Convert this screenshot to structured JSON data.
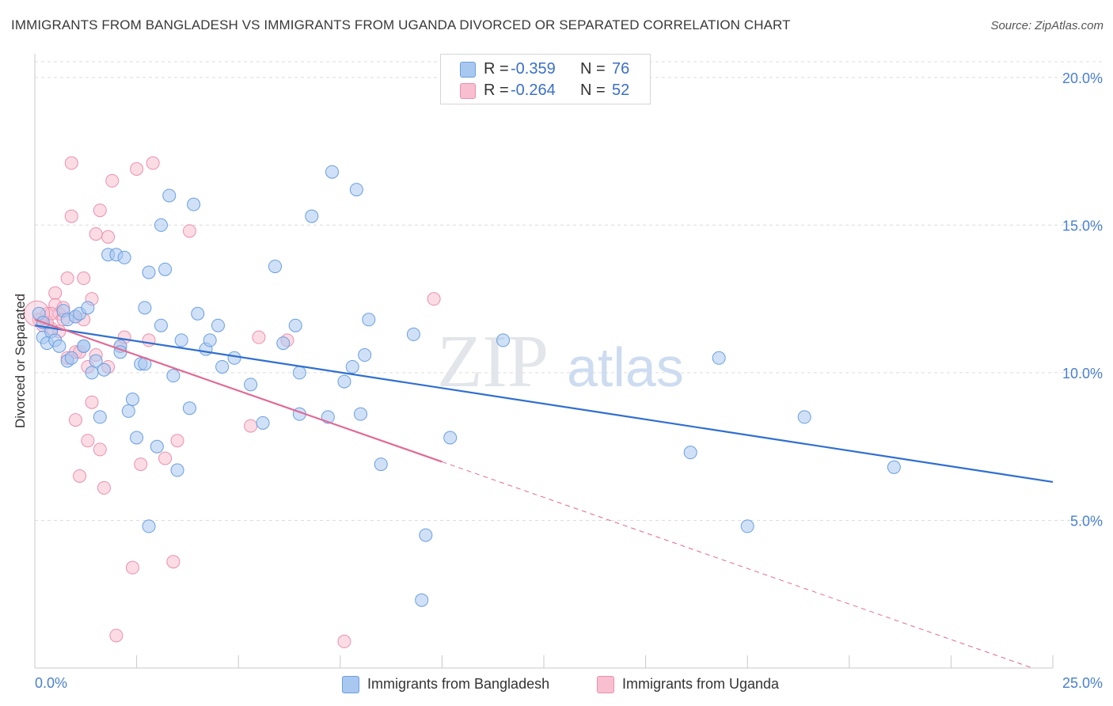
{
  "title": "IMMIGRANTS FROM BANGLADESH VS IMMIGRANTS FROM UGANDA DIVORCED OR SEPARATED CORRELATION CHART",
  "source": "Source: ZipAtlas.com",
  "watermark": {
    "zip": "ZIP",
    "atlas": "atlas"
  },
  "legend": {
    "rows": [
      {
        "r_label": "R =",
        "r_value": "-0.359",
        "n_label": "N =",
        "n_value": "76"
      },
      {
        "r_label": "R =",
        "r_value": "-0.264",
        "n_label": "N =",
        "n_value": "52"
      }
    ]
  },
  "bottom_legend": {
    "bangladesh": "Immigrants from Bangladesh",
    "uganda": "Immigrants from Uganda"
  },
  "colors": {
    "bangladesh_fill": "#a9c8f0",
    "bangladesh_stroke": "#6a9ee0",
    "bangladesh_line": "#2f6fd0",
    "uganda_fill": "#f7bfd0",
    "uganda_stroke": "#ec8fae",
    "uganda_line": "#e06a94",
    "tick_text": "#4a7fd0",
    "grid": "#dcdcdc"
  },
  "chart_data": {
    "type": "scatter",
    "title": "IMMIGRANTS FROM BANGLADESH VS IMMIGRANTS FROM UGANDA DIVORCED OR SEPARATED CORRELATION CHART",
    "xlabel": "",
    "ylabel": "Divorced or Separated",
    "xlim": [
      0,
      25
    ],
    "ylim": [
      0,
      20.8
    ],
    "x_tick_labels": [
      "0.0%",
      "25.0%"
    ],
    "y_ticks": [
      5,
      10,
      15,
      20
    ],
    "y_tick_labels": [
      "5.0%",
      "10.0%",
      "15.0%",
      "20.0%"
    ],
    "grid": true,
    "legend_position": "top-center",
    "series": [
      {
        "name": "Immigrants from Bangladesh",
        "stats": {
          "R": -0.359,
          "N": 76
        },
        "trend": {
          "x": [
            0,
            25
          ],
          "y": [
            11.6,
            6.3
          ],
          "dashed_from_x": null
        },
        "points": [
          [
            0.1,
            12.0
          ],
          [
            0.2,
            11.7
          ],
          [
            0.2,
            11.2
          ],
          [
            0.3,
            11.0
          ],
          [
            0.4,
            11.4
          ],
          [
            0.5,
            11.1
          ],
          [
            0.6,
            10.9
          ],
          [
            0.7,
            12.1
          ],
          [
            0.8,
            11.8
          ],
          [
            0.8,
            10.4
          ],
          [
            0.9,
            10.5
          ],
          [
            1.0,
            11.9
          ],
          [
            1.1,
            12.0
          ],
          [
            1.2,
            10.9
          ],
          [
            1.3,
            12.2
          ],
          [
            1.4,
            10.0
          ],
          [
            1.5,
            10.4
          ],
          [
            1.6,
            8.5
          ],
          [
            1.7,
            10.1
          ],
          [
            1.8,
            14.0
          ],
          [
            2.0,
            14.0
          ],
          [
            2.1,
            10.9
          ],
          [
            2.1,
            10.7
          ],
          [
            2.2,
            13.9
          ],
          [
            2.3,
            8.7
          ],
          [
            2.4,
            9.1
          ],
          [
            2.5,
            7.8
          ],
          [
            2.6,
            10.3
          ],
          [
            2.7,
            10.3
          ],
          [
            2.7,
            12.2
          ],
          [
            2.8,
            13.4
          ],
          [
            3.0,
            7.5
          ],
          [
            3.1,
            15.0
          ],
          [
            3.1,
            11.6
          ],
          [
            3.2,
            13.5
          ],
          [
            3.3,
            16.0
          ],
          [
            3.4,
            9.9
          ],
          [
            3.5,
            6.7
          ],
          [
            3.6,
            11.1
          ],
          [
            3.8,
            8.8
          ],
          [
            3.9,
            15.7
          ],
          [
            4.0,
            12.0
          ],
          [
            4.2,
            10.8
          ],
          [
            4.3,
            11.1
          ],
          [
            4.5,
            11.6
          ],
          [
            4.6,
            10.2
          ],
          [
            4.9,
            10.5
          ],
          [
            5.3,
            9.6
          ],
          [
            5.6,
            8.3
          ],
          [
            5.9,
            13.6
          ],
          [
            6.1,
            11.0
          ],
          [
            6.4,
            11.6
          ],
          [
            6.5,
            10.0
          ],
          [
            6.5,
            8.6
          ],
          [
            6.8,
            15.3
          ],
          [
            7.2,
            8.5
          ],
          [
            7.3,
            16.8
          ],
          [
            7.6,
            9.7
          ],
          [
            7.8,
            10.2
          ],
          [
            7.9,
            16.2
          ],
          [
            8.0,
            8.6
          ],
          [
            8.1,
            10.6
          ],
          [
            8.2,
            11.8
          ],
          [
            8.5,
            6.9
          ],
          [
            9.3,
            11.3
          ],
          [
            9.5,
            2.3
          ],
          [
            9.6,
            4.5
          ],
          [
            10.2,
            7.8
          ],
          [
            11.5,
            11.1
          ],
          [
            16.1,
            7.3
          ],
          [
            16.8,
            10.5
          ],
          [
            17.5,
            4.8
          ],
          [
            18.9,
            8.5
          ],
          [
            21.1,
            6.8
          ],
          [
            2.8,
            4.8
          ],
          [
            1.2,
            10.9
          ]
        ]
      },
      {
        "name": "Immigrants from Uganda",
        "stats": {
          "R": -0.264,
          "N": 52
        },
        "trend": {
          "x": [
            0,
            24.5
          ],
          "y": [
            11.8,
            0.0
          ],
          "dashed_from_x": 10.0
        },
        "points": [
          [
            0.1,
            11.8
          ],
          [
            0.2,
            11.6
          ],
          [
            0.3,
            12.0
          ],
          [
            0.4,
            11.5
          ],
          [
            0.5,
            12.7
          ],
          [
            0.5,
            12.3
          ],
          [
            0.6,
            12.0
          ],
          [
            0.6,
            11.4
          ],
          [
            0.7,
            11.8
          ],
          [
            0.8,
            13.2
          ],
          [
            0.8,
            10.5
          ],
          [
            0.9,
            15.3
          ],
          [
            0.9,
            17.1
          ],
          [
            1.0,
            8.4
          ],
          [
            1.0,
            10.7
          ],
          [
            1.1,
            6.5
          ],
          [
            1.2,
            13.2
          ],
          [
            1.2,
            11.8
          ],
          [
            1.3,
            10.2
          ],
          [
            1.3,
            7.7
          ],
          [
            1.4,
            12.5
          ],
          [
            1.4,
            9.0
          ],
          [
            1.5,
            14.7
          ],
          [
            1.5,
            10.6
          ],
          [
            1.6,
            15.5
          ],
          [
            1.6,
            7.4
          ],
          [
            1.7,
            6.1
          ],
          [
            1.8,
            10.2
          ],
          [
            1.8,
            14.6
          ],
          [
            1.9,
            16.5
          ],
          [
            2.0,
            1.1
          ],
          [
            2.1,
            10.9
          ],
          [
            2.2,
            11.2
          ],
          [
            2.4,
            3.4
          ],
          [
            2.5,
            16.9
          ],
          [
            2.6,
            6.9
          ],
          [
            2.8,
            11.1
          ],
          [
            2.9,
            17.1
          ],
          [
            3.2,
            7.1
          ],
          [
            3.4,
            3.6
          ],
          [
            3.5,
            7.7
          ],
          [
            3.8,
            14.8
          ],
          [
            5.3,
            8.2
          ],
          [
            5.5,
            11.2
          ],
          [
            6.2,
            11.1
          ],
          [
            7.6,
            0.9
          ],
          [
            9.8,
            12.5
          ],
          [
            0.3,
            11.7
          ],
          [
            0.4,
            12.0
          ],
          [
            1.1,
            10.7
          ],
          [
            0.7,
            12.2
          ],
          [
            1.0,
            11.9
          ]
        ]
      }
    ]
  }
}
